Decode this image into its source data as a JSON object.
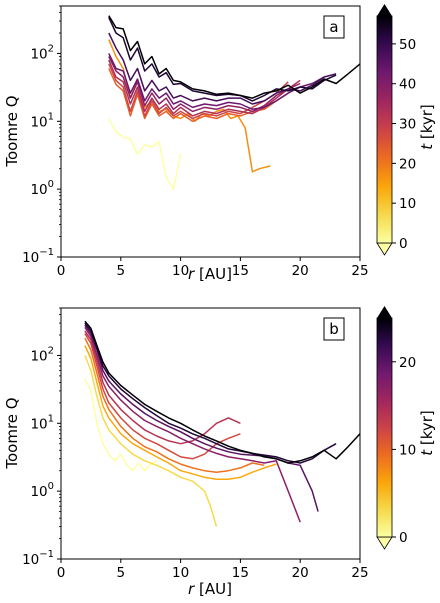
{
  "figure": {
    "panels": [
      {
        "tag": "a",
        "xlabel_italic": "r",
        "xlabel_rest": " [AU]",
        "ylabel": "Toomre Q",
        "cbar_label_italic": "t",
        "cbar_label_rest": " [kyr]",
        "xticks": [
          "0",
          "5",
          "10",
          "15",
          "20",
          "25"
        ],
        "yticks_base": [
          "10",
          "10",
          "10",
          "10"
        ],
        "yticks_exp": [
          "−1",
          "0",
          "1",
          "2"
        ],
        "cbar_ticks": [
          "0",
          "10",
          "20",
          "30",
          "40",
          "50"
        ]
      },
      {
        "tag": "b",
        "xlabel_italic": "r",
        "xlabel_rest": " [AU]",
        "ylabel": "Toomre Q",
        "cbar_label_italic": "t",
        "cbar_label_rest": " [kyr]",
        "xticks": [
          "0",
          "5",
          "10",
          "15",
          "20",
          "25"
        ],
        "yticks_base": [
          "10",
          "10",
          "10",
          "10"
        ],
        "yticks_exp": [
          "−1",
          "0",
          "1",
          "2"
        ],
        "cbar_ticks": [
          "0",
          "10",
          "20"
        ]
      }
    ]
  },
  "chart_data": [
    {
      "type": "line",
      "panel": "a",
      "xlabel": "r [AU]",
      "ylabel": "Toomre Q",
      "xlim": [
        0,
        25
      ],
      "ylim": [
        0.1,
        500
      ],
      "yscale": "log",
      "grid": false,
      "colorbar": {
        "label": "t [kyr]",
        "range": [
          0,
          57
        ],
        "ticks": [
          0,
          10,
          20,
          30,
          40,
          50
        ],
        "colormap": "inferno_r",
        "extend": "both"
      },
      "series": [
        {
          "t": 0,
          "x": [
            4.0,
            4.6,
            5.2,
            5.8,
            6.4,
            7.0,
            7.6,
            8.2,
            8.8,
            9.4,
            10.0
          ],
          "y": [
            11,
            7,
            5.8,
            5.5,
            3.3,
            4.5,
            4.2,
            5,
            1.5,
            1.0,
            3.3
          ]
        },
        {
          "t": 17,
          "x": [
            4.0,
            4.6,
            5.2,
            5.8,
            6.4,
            7.0,
            7.6,
            8.2,
            8.8,
            9.4,
            10.0,
            10.6,
            11.2,
            11.8,
            12.4,
            13.0,
            13.6,
            14.2,
            14.8,
            15.4,
            16.0,
            16.6,
            17.5
          ],
          "y": [
            160,
            90,
            60,
            22,
            40,
            16,
            20,
            14,
            15,
            12,
            11,
            13,
            10,
            13,
            12,
            14,
            15,
            11,
            12,
            8,
            1.8,
            2.0,
            2.2
          ]
        },
        {
          "t": 23,
          "x": [
            4.0,
            4.6,
            5.2,
            5.8,
            6.4,
            7.0,
            7.6,
            8.2,
            8.8,
            9.4,
            10.0,
            11.0,
            12.0,
            13.0,
            14.0,
            15.0,
            16.0,
            17.0,
            18.0,
            19.0
          ],
          "y": [
            60,
            35,
            28,
            12,
            25,
            11,
            18,
            12,
            14,
            11,
            13,
            10,
            12,
            11,
            13,
            12,
            14,
            15,
            20,
            26
          ]
        },
        {
          "t": 28,
          "x": [
            4.0,
            4.6,
            5.2,
            5.8,
            6.4,
            7.0,
            7.6,
            8.2,
            8.8,
            9.4,
            10.0,
            11.0,
            12.0,
            13.0,
            14.0,
            15.0,
            16.0,
            17.0,
            18.0,
            19.0
          ],
          "y": [
            70,
            40,
            32,
            14,
            28,
            12,
            20,
            13,
            16,
            12,
            14,
            11,
            13,
            12,
            14,
            13,
            16,
            20,
            26,
            38
          ]
        },
        {
          "t": 33,
          "x": [
            4.0,
            4.6,
            5.2,
            5.8,
            6.4,
            7.0,
            7.6,
            8.2,
            8.8,
            9.4,
            10.0,
            11.0,
            12.0,
            13.0,
            14.0,
            15.0,
            16.0,
            17.0,
            18.0,
            19.0,
            20.0
          ],
          "y": [
            80,
            45,
            38,
            18,
            32,
            14,
            22,
            15,
            18,
            13,
            16,
            12,
            14,
            13,
            15,
            14,
            13,
            16,
            22,
            30,
            40
          ]
        },
        {
          "t": 38,
          "x": [
            4.0,
            4.6,
            5.2,
            5.8,
            6.4,
            7.0,
            7.6,
            8.2,
            8.8,
            9.4,
            10.0,
            11.0,
            12.0,
            13.0,
            14.0,
            15.0,
            16.0,
            17.0,
            18.0,
            19.0,
            20.0
          ],
          "y": [
            90,
            55,
            45,
            22,
            38,
            17,
            26,
            18,
            22,
            15,
            18,
            14,
            16,
            15,
            17,
            16,
            14,
            17,
            24,
            30,
            36
          ]
        },
        {
          "t": 43,
          "x": [
            4.0,
            4.6,
            5.2,
            5.8,
            6.4,
            7.0,
            7.6,
            8.2,
            8.8,
            9.4,
            10.0,
            11.0,
            12.0,
            13.0,
            14.0,
            15.0,
            16.0,
            17.0,
            18.0,
            19.0,
            20.0,
            21.0,
            22.0
          ],
          "y": [
            100,
            60,
            55,
            26,
            42,
            20,
            30,
            22,
            26,
            18,
            20,
            16,
            18,
            17,
            19,
            18,
            15,
            16,
            20,
            26,
            32,
            36,
            45
          ]
        },
        {
          "t": 48,
          "x": [
            4.0,
            4.6,
            5.2,
            5.8,
            6.4,
            7.0,
            7.6,
            8.2,
            8.8,
            9.4,
            10.0,
            11.0,
            12.0,
            13.0,
            14.0,
            15.0,
            16.0,
            17.0,
            18.0,
            19.0,
            20.0,
            21.0,
            22.0,
            23.0
          ],
          "y": [
            200,
            120,
            80,
            40,
            60,
            28,
            40,
            28,
            32,
            22,
            24,
            20,
            22,
            20,
            22,
            22,
            18,
            20,
            26,
            30,
            28,
            34,
            45,
            50
          ]
        },
        {
          "t": 53,
          "x": [
            4.0,
            4.6,
            5.2,
            5.8,
            6.4,
            7.0,
            7.6,
            8.2,
            8.8,
            9.4,
            10.0,
            11.0,
            12.0,
            13.0,
            14.0,
            15.0,
            16.0,
            17.0,
            18.0,
            19.0,
            20.0,
            21.0,
            22.0,
            23.0
          ],
          "y": [
            340,
            200,
            170,
            80,
            120,
            55,
            70,
            45,
            52,
            35,
            36,
            28,
            26,
            24,
            25,
            24,
            20,
            24,
            30,
            28,
            32,
            30,
            40,
            48
          ]
        },
        {
          "t": 57,
          "x": [
            4.0,
            4.6,
            5.2,
            5.8,
            6.4,
            7.0,
            7.6,
            8.2,
            8.8,
            9.4,
            10.0,
            11.0,
            12.0,
            13.0,
            14.0,
            15.0,
            16.0,
            17.0,
            18.0,
            19.0,
            20.0,
            21.0,
            22.0,
            23.0,
            24.0,
            25.0
          ],
          "y": [
            360,
            240,
            230,
            110,
            150,
            70,
            90,
            50,
            60,
            40,
            38,
            30,
            28,
            25,
            26,
            24,
            22,
            26,
            28,
            34,
            26,
            32,
            42,
            36,
            50,
            70
          ]
        }
      ]
    },
    {
      "type": "line",
      "panel": "b",
      "xlabel": "r [AU]",
      "ylabel": "Toomre Q",
      "xlim": [
        0,
        25
      ],
      "ylim": [
        0.1,
        500
      ],
      "yscale": "log",
      "grid": false,
      "colorbar": {
        "label": "t [kyr]",
        "range": [
          0,
          25
        ],
        "ticks": [
          0,
          10,
          20
        ],
        "colormap": "inferno_r",
        "extend": "both"
      },
      "series": [
        {
          "t": 0,
          "x": [
            2.0,
            2.5,
            3.0,
            3.5,
            4.0,
            4.5,
            5.0,
            5.5,
            6.0,
            6.5,
            7.0,
            7.5,
            8.0
          ],
          "y": [
            45,
            30,
            10,
            5,
            3.5,
            2.8,
            3.5,
            2.4,
            2.0,
            2.6,
            2.0,
            2.5,
            2.8
          ]
        },
        {
          "t": 3,
          "x": [
            2.0,
            2.5,
            3.0,
            3.5,
            4.0,
            5.0,
            6.0,
            7.0,
            8.0,
            9.0,
            10.0,
            11.0,
            12.0,
            12.5,
            13.0
          ],
          "y": [
            100,
            60,
            25,
            12,
            8,
            5,
            3.5,
            2.8,
            2.4,
            2.0,
            1.6,
            1.4,
            1.0,
            0.6,
            0.3
          ]
        },
        {
          "t": 6,
          "x": [
            2.0,
            2.5,
            3.0,
            3.5,
            4.0,
            5.0,
            6.0,
            7.0,
            8.0,
            9.0,
            10.0,
            11.0,
            12.0,
            13.0,
            14.0,
            15.0,
            16.0,
            17.0,
            18.0
          ],
          "y": [
            140,
            90,
            40,
            18,
            12,
            7,
            5,
            4,
            3.2,
            2.6,
            2.0,
            1.8,
            1.6,
            1.5,
            1.5,
            1.6,
            1.9,
            2.2,
            2.5
          ]
        },
        {
          "t": 9,
          "x": [
            2.0,
            2.5,
            3.0,
            3.5,
            4.0,
            5.0,
            6.0,
            7.0,
            8.0,
            9.0,
            10.0,
            11.0,
            12.0,
            13.0,
            14.0,
            15.0,
            16.0,
            17.0
          ],
          "y": [
            180,
            120,
            55,
            25,
            16,
            9,
            6,
            4.5,
            3.8,
            3.0,
            2.5,
            2.2,
            2.0,
            1.9,
            2.0,
            2.2,
            2.6,
            2.4
          ]
        },
        {
          "t": 12,
          "x": [
            2.0,
            2.5,
            3.0,
            3.5,
            4.0,
            5.0,
            6.0,
            7.0,
            8.0,
            9.0,
            10.0,
            11.0,
            12.0,
            13.0,
            14.0,
            15.0
          ],
          "y": [
            210,
            150,
            70,
            32,
            20,
            12,
            8,
            6,
            5,
            4,
            3.2,
            3.0,
            3.5,
            5,
            6,
            7
          ]
        },
        {
          "t": 14,
          "x": [
            2.0,
            2.5,
            3.0,
            3.5,
            4.0,
            5.0,
            6.0,
            7.0,
            8.0,
            9.0,
            10.0,
            11.0,
            12.0,
            13.0,
            14.0,
            15.0
          ],
          "y": [
            230,
            170,
            85,
            40,
            26,
            16,
            11,
            8,
            6.5,
            5.5,
            5,
            5.5,
            7,
            10,
            12,
            10
          ]
        },
        {
          "t": 17,
          "x": [
            2.0,
            2.5,
            3.0,
            3.5,
            4.0,
            5.0,
            6.0,
            7.0,
            8.0,
            9.0,
            10.0,
            11.0,
            12.0,
            13.0,
            14.0,
            15.0,
            16.0,
            17.0,
            18.0,
            19.0,
            20.0
          ],
          "y": [
            260,
            190,
            100,
            50,
            35,
            22,
            15,
            11,
            9,
            7.5,
            6,
            5,
            4.2,
            3.6,
            3.2,
            3.0,
            2.8,
            2.6,
            2.8,
            1.0,
            0.35
          ]
        },
        {
          "t": 20,
          "x": [
            2.0,
            2.5,
            3.0,
            3.5,
            4.0,
            5.0,
            6.0,
            7.0,
            8.0,
            9.0,
            10.0,
            11.0,
            12.0,
            13.0,
            14.0,
            15.0,
            16.0,
            17.0,
            18.0,
            19.0,
            20.0,
            21.0,
            21.5
          ],
          "y": [
            280,
            210,
            120,
            60,
            42,
            27,
            19,
            14,
            11,
            9,
            7.5,
            6,
            5,
            4.3,
            3.8,
            3.5,
            3.4,
            3.3,
            3.0,
            2.6,
            2.4,
            1.0,
            0.5
          ]
        },
        {
          "t": 23,
          "x": [
            2.0,
            2.5,
            3.0,
            3.5,
            4.0,
            5.0,
            6.0,
            7.0,
            8.0,
            9.0,
            10.0,
            11.0,
            12.0,
            13.0,
            14.0,
            15.0,
            16.0,
            17.0,
            18.0,
            19.0,
            20.0,
            21.0,
            22.0,
            23.0
          ],
          "y": [
            300,
            230,
            130,
            70,
            50,
            32,
            23,
            17,
            13,
            10,
            8.5,
            7,
            6,
            5,
            4.2,
            3.9,
            3.6,
            3.4,
            3.2,
            2.8,
            2.6,
            3.0,
            4.0,
            5.0
          ]
        },
        {
          "t": 26,
          "x": [
            2.0,
            2.5,
            3.0,
            3.5,
            4.0,
            5.0,
            6.0,
            7.0,
            8.0,
            9.0,
            10.0,
            11.0,
            12.0,
            13.0,
            14.0,
            15.0,
            16.0,
            17.0,
            18.0,
            19.0,
            20.0,
            21.0,
            22.0,
            23.0,
            24.0,
            25.0
          ],
          "y": [
            320,
            250,
            140,
            80,
            55,
            36,
            26,
            19,
            15,
            12,
            10,
            8,
            6.5,
            5.5,
            4.6,
            4.0,
            3.6,
            3.2,
            3.0,
            2.6,
            2.8,
            3.2,
            4.0,
            3.0,
            4.5,
            7.0
          ]
        }
      ]
    }
  ]
}
